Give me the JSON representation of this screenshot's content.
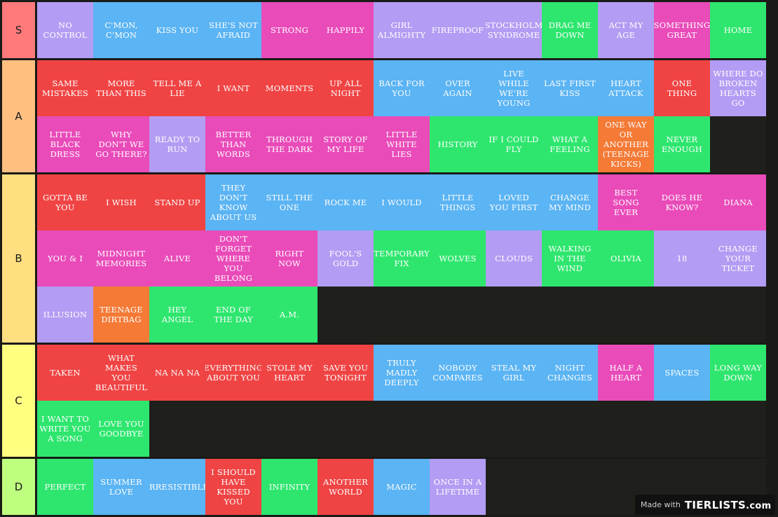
{
  "colors": {
    "purple": "#b39cf3",
    "blue": "#5bb4f3",
    "pink": "#e94bb9",
    "green": "#2ee66e",
    "red": "#f04444",
    "orange": "#f47a36"
  },
  "tiers": [
    {
      "label": "S",
      "color": "#ff7b7b",
      "lines": 1,
      "items": [
        {
          "name": "NO CONTROL",
          "c": "purple"
        },
        {
          "name": "C'MON, C'MON",
          "c": "blue"
        },
        {
          "name": "KISS YOU",
          "c": "blue"
        },
        {
          "name": "SHE'S NOT AFRAID",
          "c": "blue"
        },
        {
          "name": "STRONG",
          "c": "pink"
        },
        {
          "name": "HAPPILY",
          "c": "pink"
        },
        {
          "name": "GIRL ALMIGHTY",
          "c": "purple"
        },
        {
          "name": "FIREPROOF",
          "c": "purple"
        },
        {
          "name": "STOCKHOLM SYNDROME",
          "c": "purple"
        },
        {
          "name": "DRAG ME DOWN",
          "c": "green"
        },
        {
          "name": "ACT MY AGE",
          "c": "purple"
        },
        {
          "name": "SOMETHING GREAT",
          "c": "pink"
        },
        {
          "name": "HOME",
          "c": "green"
        }
      ]
    },
    {
      "label": "A",
      "color": "#ffbf80",
      "lines": 2,
      "items": [
        {
          "name": "SAME MISTAKES",
          "c": "red"
        },
        {
          "name": "MORE THAN THIS",
          "c": "red"
        },
        {
          "name": "TELL ME A LIE",
          "c": "red"
        },
        {
          "name": "I WANT",
          "c": "red"
        },
        {
          "name": "MOMENTS",
          "c": "red"
        },
        {
          "name": "UP ALL NIGHT",
          "c": "red"
        },
        {
          "name": "BACK FOR YOU",
          "c": "blue"
        },
        {
          "name": "OVER AGAIN",
          "c": "blue"
        },
        {
          "name": "LIVE WHILE WE'RE YOUNG",
          "c": "blue"
        },
        {
          "name": "LAST FIRST KISS",
          "c": "blue"
        },
        {
          "name": "HEART ATTACK",
          "c": "blue"
        },
        {
          "name": "ONE THING",
          "c": "red"
        },
        {
          "name": "WHERE DO BROKEN HEARTS GO",
          "c": "purple"
        },
        {
          "name": "LITTLE BLACK DRESS",
          "c": "pink"
        },
        {
          "name": "WHY DON'T WE GO THERE?",
          "c": "pink"
        },
        {
          "name": "READY TO RUN",
          "c": "purple"
        },
        {
          "name": "BETTER THAN WORDS",
          "c": "pink"
        },
        {
          "name": "THROUGH THE DARK",
          "c": "pink"
        },
        {
          "name": "STORY OF MY LIFE",
          "c": "pink"
        },
        {
          "name": "LITTLE WHITE LIES",
          "c": "pink"
        },
        {
          "name": "HISTORY",
          "c": "green"
        },
        {
          "name": "IF I COULD FLY",
          "c": "green"
        },
        {
          "name": "WHAT A FEELING",
          "c": "green"
        },
        {
          "name": "ONE WAY OR ANOTHER (TEENAGE KICKS)",
          "c": "orange"
        },
        {
          "name": "NEVER ENOUGH",
          "c": "green"
        }
      ]
    },
    {
      "label": "B",
      "color": "#ffdf80",
      "lines": 3,
      "items": [
        {
          "name": "GOTTA BE YOU",
          "c": "red"
        },
        {
          "name": "I WISH",
          "c": "red"
        },
        {
          "name": "STAND UP",
          "c": "red"
        },
        {
          "name": "THEY DON'T KNOW ABOUT US",
          "c": "blue"
        },
        {
          "name": "STILL THE ONE",
          "c": "blue"
        },
        {
          "name": "ROCK ME",
          "c": "blue"
        },
        {
          "name": "I WOULD",
          "c": "blue"
        },
        {
          "name": "LITTLE THINGS",
          "c": "blue"
        },
        {
          "name": "LOVED YOU FIRST",
          "c": "blue"
        },
        {
          "name": "CHANGE MY MIND",
          "c": "blue"
        },
        {
          "name": "BEST SONG EVER",
          "c": "pink"
        },
        {
          "name": "DOES HE KNOW?",
          "c": "pink"
        },
        {
          "name": "DIANA",
          "c": "pink"
        },
        {
          "name": "YOU & I",
          "c": "pink"
        },
        {
          "name": "MIDNIGHT MEMORIES",
          "c": "pink"
        },
        {
          "name": "ALIVE",
          "c": "pink"
        },
        {
          "name": "DON'T FORGET WHERE YOU BELONG",
          "c": "pink"
        },
        {
          "name": "RIGHT NOW",
          "c": "pink"
        },
        {
          "name": "FOOL'S GOLD",
          "c": "purple"
        },
        {
          "name": "TEMPORARY FIX",
          "c": "green"
        },
        {
          "name": "WOLVES",
          "c": "green"
        },
        {
          "name": "CLOUDS",
          "c": "purple"
        },
        {
          "name": "WALKING IN THE WIND",
          "c": "green"
        },
        {
          "name": "OLIVIA",
          "c": "green"
        },
        {
          "name": "18",
          "c": "purple"
        },
        {
          "name": "CHANGE YOUR TICKET",
          "c": "purple"
        },
        {
          "name": "ILLUSION",
          "c": "purple"
        },
        {
          "name": "TEENAGE DIRTBAG",
          "c": "orange"
        },
        {
          "name": "HEY ANGEL",
          "c": "green"
        },
        {
          "name": "END OF THE DAY",
          "c": "green"
        },
        {
          "name": "A.M.",
          "c": "green"
        }
      ]
    },
    {
      "label": "C",
      "color": "#ffff80",
      "lines": 2,
      "items": [
        {
          "name": "TAKEN",
          "c": "red"
        },
        {
          "name": "WHAT MAKES YOU BEAUTIFUL",
          "c": "red"
        },
        {
          "name": "NA NA NA",
          "c": "red"
        },
        {
          "name": "EVERYTHING ABOUT YOU",
          "c": "red"
        },
        {
          "name": "STOLE MY HEART",
          "c": "red"
        },
        {
          "name": "SAVE YOU TONIGHT",
          "c": "red"
        },
        {
          "name": "TRULY MADLY DEEPLY",
          "c": "blue"
        },
        {
          "name": "NOBODY COMPARES",
          "c": "blue"
        },
        {
          "name": "STEAL MY GIRL",
          "c": "blue"
        },
        {
          "name": "NIGHT CHANGES",
          "c": "blue"
        },
        {
          "name": "HALF A HEART",
          "c": "pink"
        },
        {
          "name": "SPACES",
          "c": "blue"
        },
        {
          "name": "LONG WAY DOWN",
          "c": "green"
        },
        {
          "name": "I WANT TO WRITE YOU A SONG",
          "c": "green"
        },
        {
          "name": "LOVE YOU GOODBYE",
          "c": "green"
        }
      ]
    },
    {
      "label": "D",
      "color": "#bfff80",
      "lines": 1,
      "items": [
        {
          "name": "PERFECT",
          "c": "green"
        },
        {
          "name": "SUMMER LOVE",
          "c": "blue"
        },
        {
          "name": "IRRESISTIBLE",
          "c": "blue"
        },
        {
          "name": "I SHOULD HAVE KISSED YOU",
          "c": "red"
        },
        {
          "name": "INFINITY",
          "c": "green"
        },
        {
          "name": "ANOTHER WORLD",
          "c": "red"
        },
        {
          "name": "MAGIC",
          "c": "blue"
        },
        {
          "name": "ONCE IN A LIFETIME",
          "c": "purple"
        }
      ]
    }
  ],
  "badge": {
    "made_with": "Made with",
    "brand": "TIERLISTS",
    "brand_suffix": ".com"
  }
}
